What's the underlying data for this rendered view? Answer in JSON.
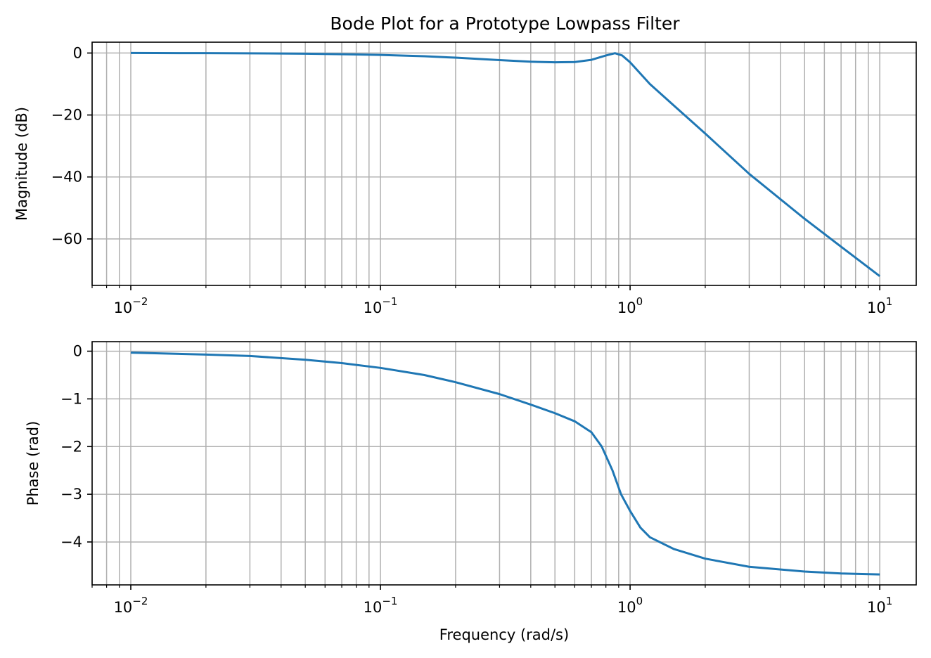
{
  "chart_data": [
    {
      "type": "line",
      "title": "Bode Plot for a Prototype Lowpass Filter",
      "xlabel": "",
      "ylabel": "Magnitude (dB)",
      "xscale": "log",
      "xlim": [
        0.007,
        14
      ],
      "ylim": [
        -75,
        3.5
      ],
      "grid": "both (major and minor)",
      "xticks": [
        0.01,
        0.1,
        1,
        10
      ],
      "xtick_labels": [
        {
          "base": "10",
          "exp": "−2"
        },
        {
          "base": "10",
          "exp": "−1"
        },
        {
          "base": "10",
          "exp": "0"
        },
        {
          "base": "10",
          "exp": "1"
        }
      ],
      "yticks": [
        0,
        -20,
        -40,
        -60
      ],
      "ytick_labels": [
        "0",
        "−20",
        "−40",
        "−60"
      ],
      "series": [
        {
          "color": "#1f77b4",
          "points": [
            [
              0.01,
              0.0
            ],
            [
              0.02,
              -0.05
            ],
            [
              0.03,
              -0.1
            ],
            [
              0.05,
              -0.22
            ],
            [
              0.07,
              -0.38
            ],
            [
              0.1,
              -0.6
            ],
            [
              0.15,
              -1.05
            ],
            [
              0.2,
              -1.5
            ],
            [
              0.3,
              -2.3
            ],
            [
              0.4,
              -2.8
            ],
            [
              0.5,
              -3.0
            ],
            [
              0.6,
              -2.9
            ],
            [
              0.7,
              -2.2
            ],
            [
              0.8,
              -0.8
            ],
            [
              0.87,
              -0.05
            ],
            [
              0.93,
              -0.8
            ],
            [
              1.0,
              -3.0
            ],
            [
              1.2,
              -10.0
            ],
            [
              1.5,
              -17.0
            ],
            [
              2.0,
              -26.0
            ],
            [
              3.0,
              -39.0
            ],
            [
              5.0,
              -53.5
            ],
            [
              7.0,
              -62.5
            ],
            [
              10.0,
              -72.0
            ]
          ]
        }
      ]
    },
    {
      "type": "line",
      "title": "",
      "xlabel": "Frequency (rad/s)",
      "ylabel": "Phase (rad)",
      "xscale": "log",
      "xlim": [
        0.007,
        14
      ],
      "ylim": [
        -4.9,
        0.2
      ],
      "grid": "both (major and minor)",
      "xticks": [
        0.01,
        0.1,
        1,
        10
      ],
      "xtick_labels": [
        {
          "base": "10",
          "exp": "−2"
        },
        {
          "base": "10",
          "exp": "−1"
        },
        {
          "base": "10",
          "exp": "0"
        },
        {
          "base": "10",
          "exp": "1"
        }
      ],
      "yticks": [
        0,
        -1,
        -2,
        -3,
        -4
      ],
      "ytick_labels": [
        "0",
        "−1",
        "−2",
        "−3",
        "−4"
      ],
      "series": [
        {
          "color": "#1f77b4",
          "points": [
            [
              0.01,
              -0.03
            ],
            [
              0.02,
              -0.07
            ],
            [
              0.03,
              -0.1
            ],
            [
              0.05,
              -0.18
            ],
            [
              0.07,
              -0.25
            ],
            [
              0.1,
              -0.35
            ],
            [
              0.15,
              -0.5
            ],
            [
              0.2,
              -0.65
            ],
            [
              0.3,
              -0.9
            ],
            [
              0.4,
              -1.12
            ],
            [
              0.5,
              -1.3
            ],
            [
              0.6,
              -1.47
            ],
            [
              0.7,
              -1.7
            ],
            [
              0.77,
              -2.0
            ],
            [
              0.85,
              -2.5
            ],
            [
              0.92,
              -3.0
            ],
            [
              1.0,
              -3.35
            ],
            [
              1.1,
              -3.7
            ],
            [
              1.2,
              -3.9
            ],
            [
              1.5,
              -4.15
            ],
            [
              2.0,
              -4.35
            ],
            [
              3.0,
              -4.52
            ],
            [
              5.0,
              -4.62
            ],
            [
              7.0,
              -4.66
            ],
            [
              10.0,
              -4.68
            ]
          ]
        }
      ]
    }
  ]
}
